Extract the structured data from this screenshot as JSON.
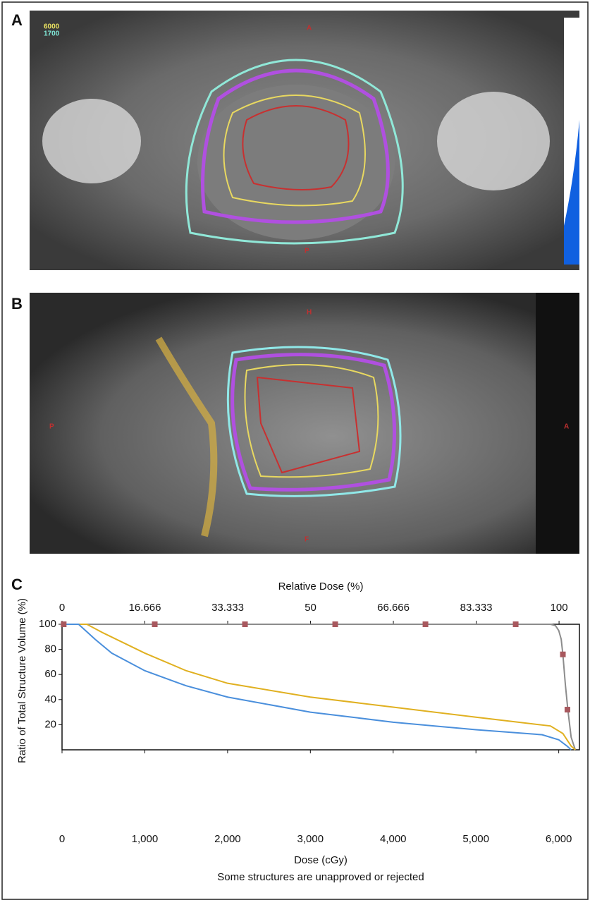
{
  "panels": [
    {
      "label": "A",
      "overlay_labels": [
        "6000",
        "1700",
        "A",
        "P"
      ]
    },
    {
      "label": "B",
      "overlay_labels": [
        "H",
        "P",
        "A",
        "F"
      ]
    }
  ],
  "chart_data": {
    "type": "line",
    "panel_label": "C",
    "title": "Relative Dose (%)",
    "xlabel": "Dose (cGy)",
    "ylabel": "Ratio of Total Structure Volume (%)",
    "note": "Some structures are unapproved or rejected",
    "xlim": [
      0,
      6250
    ],
    "xticks": [
      0,
      {
        "value": 1000,
        "label": "1,000"
      },
      {
        "value": 2000,
        "label": "2,000"
      },
      {
        "value": 3000,
        "label": "3,000"
      },
      {
        "value": 4000,
        "label": "4,000"
      },
      {
        "value": 5000,
        "label": "5,000"
      },
      {
        "value": 6000,
        "label": "6,000"
      }
    ],
    "x2lim": [
      0,
      104.1
    ],
    "x2ticks": [
      0,
      16.666,
      33.333,
      50,
      66.666,
      83.333,
      100
    ],
    "ylim": [
      0,
      100
    ],
    "yticks": [
      20,
      40,
      60,
      80,
      100
    ],
    "series": [
      {
        "color": "#8c8c8c",
        "x": [
          0,
          5900,
          5960,
          6000,
          6030,
          6050,
          6080,
          6110,
          6150,
          6200
        ],
        "values": [
          100,
          100,
          99,
          95,
          88,
          76,
          52,
          32,
          10,
          0
        ]
      },
      {
        "color": "#e0b020",
        "x": [
          0,
          300,
          500,
          1000,
          1500,
          2000,
          3000,
          4000,
          5000,
          5900,
          6050,
          6150,
          6200
        ],
        "values": [
          100,
          100,
          93,
          77,
          63,
          53,
          42,
          34,
          26,
          19,
          13,
          3,
          0
        ]
      },
      {
        "color": "#4a8fdc",
        "x": [
          0,
          200,
          400,
          600,
          1000,
          1500,
          2000,
          3000,
          4000,
          5000,
          5800,
          6000,
          6100,
          6150
        ],
        "values": [
          100,
          100,
          88,
          77,
          63,
          51,
          42,
          30,
          22,
          16,
          12,
          8,
          3,
          0
        ]
      }
    ],
    "markers": {
      "color": "#a8585e",
      "x": [
        20,
        1120,
        2210,
        3300,
        4390,
        5480,
        6050,
        6105
      ],
      "values": [
        100,
        100,
        100,
        100,
        100,
        100,
        76,
        32
      ]
    }
  }
}
